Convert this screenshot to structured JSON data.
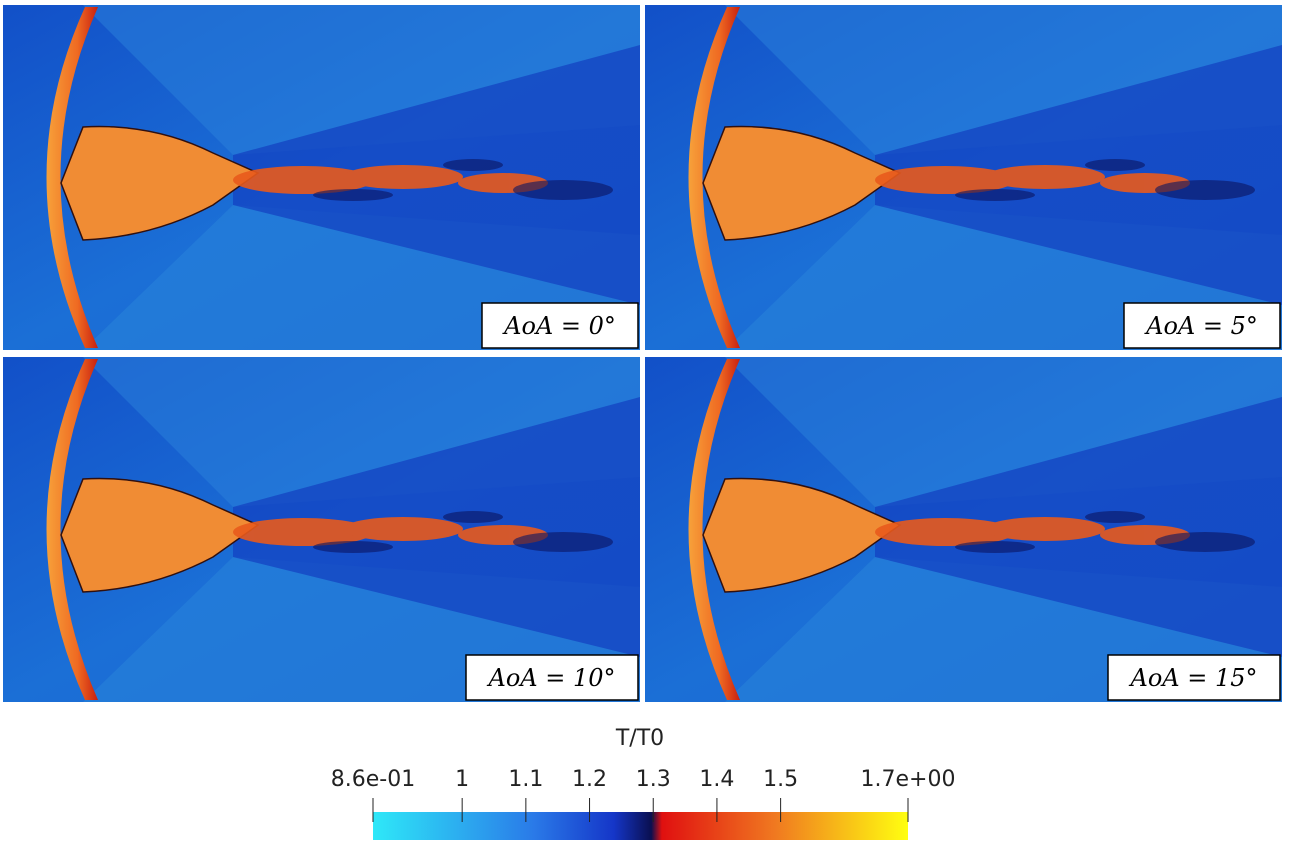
{
  "panels": [
    {
      "label": "AoA = 0°"
    },
    {
      "label": "AoA = 5°"
    },
    {
      "label": "AoA = 10°"
    },
    {
      "label": "AoA = 15°"
    }
  ],
  "colorbar": {
    "title": "T/T0",
    "range": [
      0.86,
      1.7
    ],
    "ticks": [
      {
        "value": 0.86,
        "label": "8.6e-01"
      },
      1,
      1.1,
      1.2,
      1.3,
      1.4,
      1.5,
      {
        "value": 1.7,
        "label": "1.7e+00"
      }
    ]
  }
}
